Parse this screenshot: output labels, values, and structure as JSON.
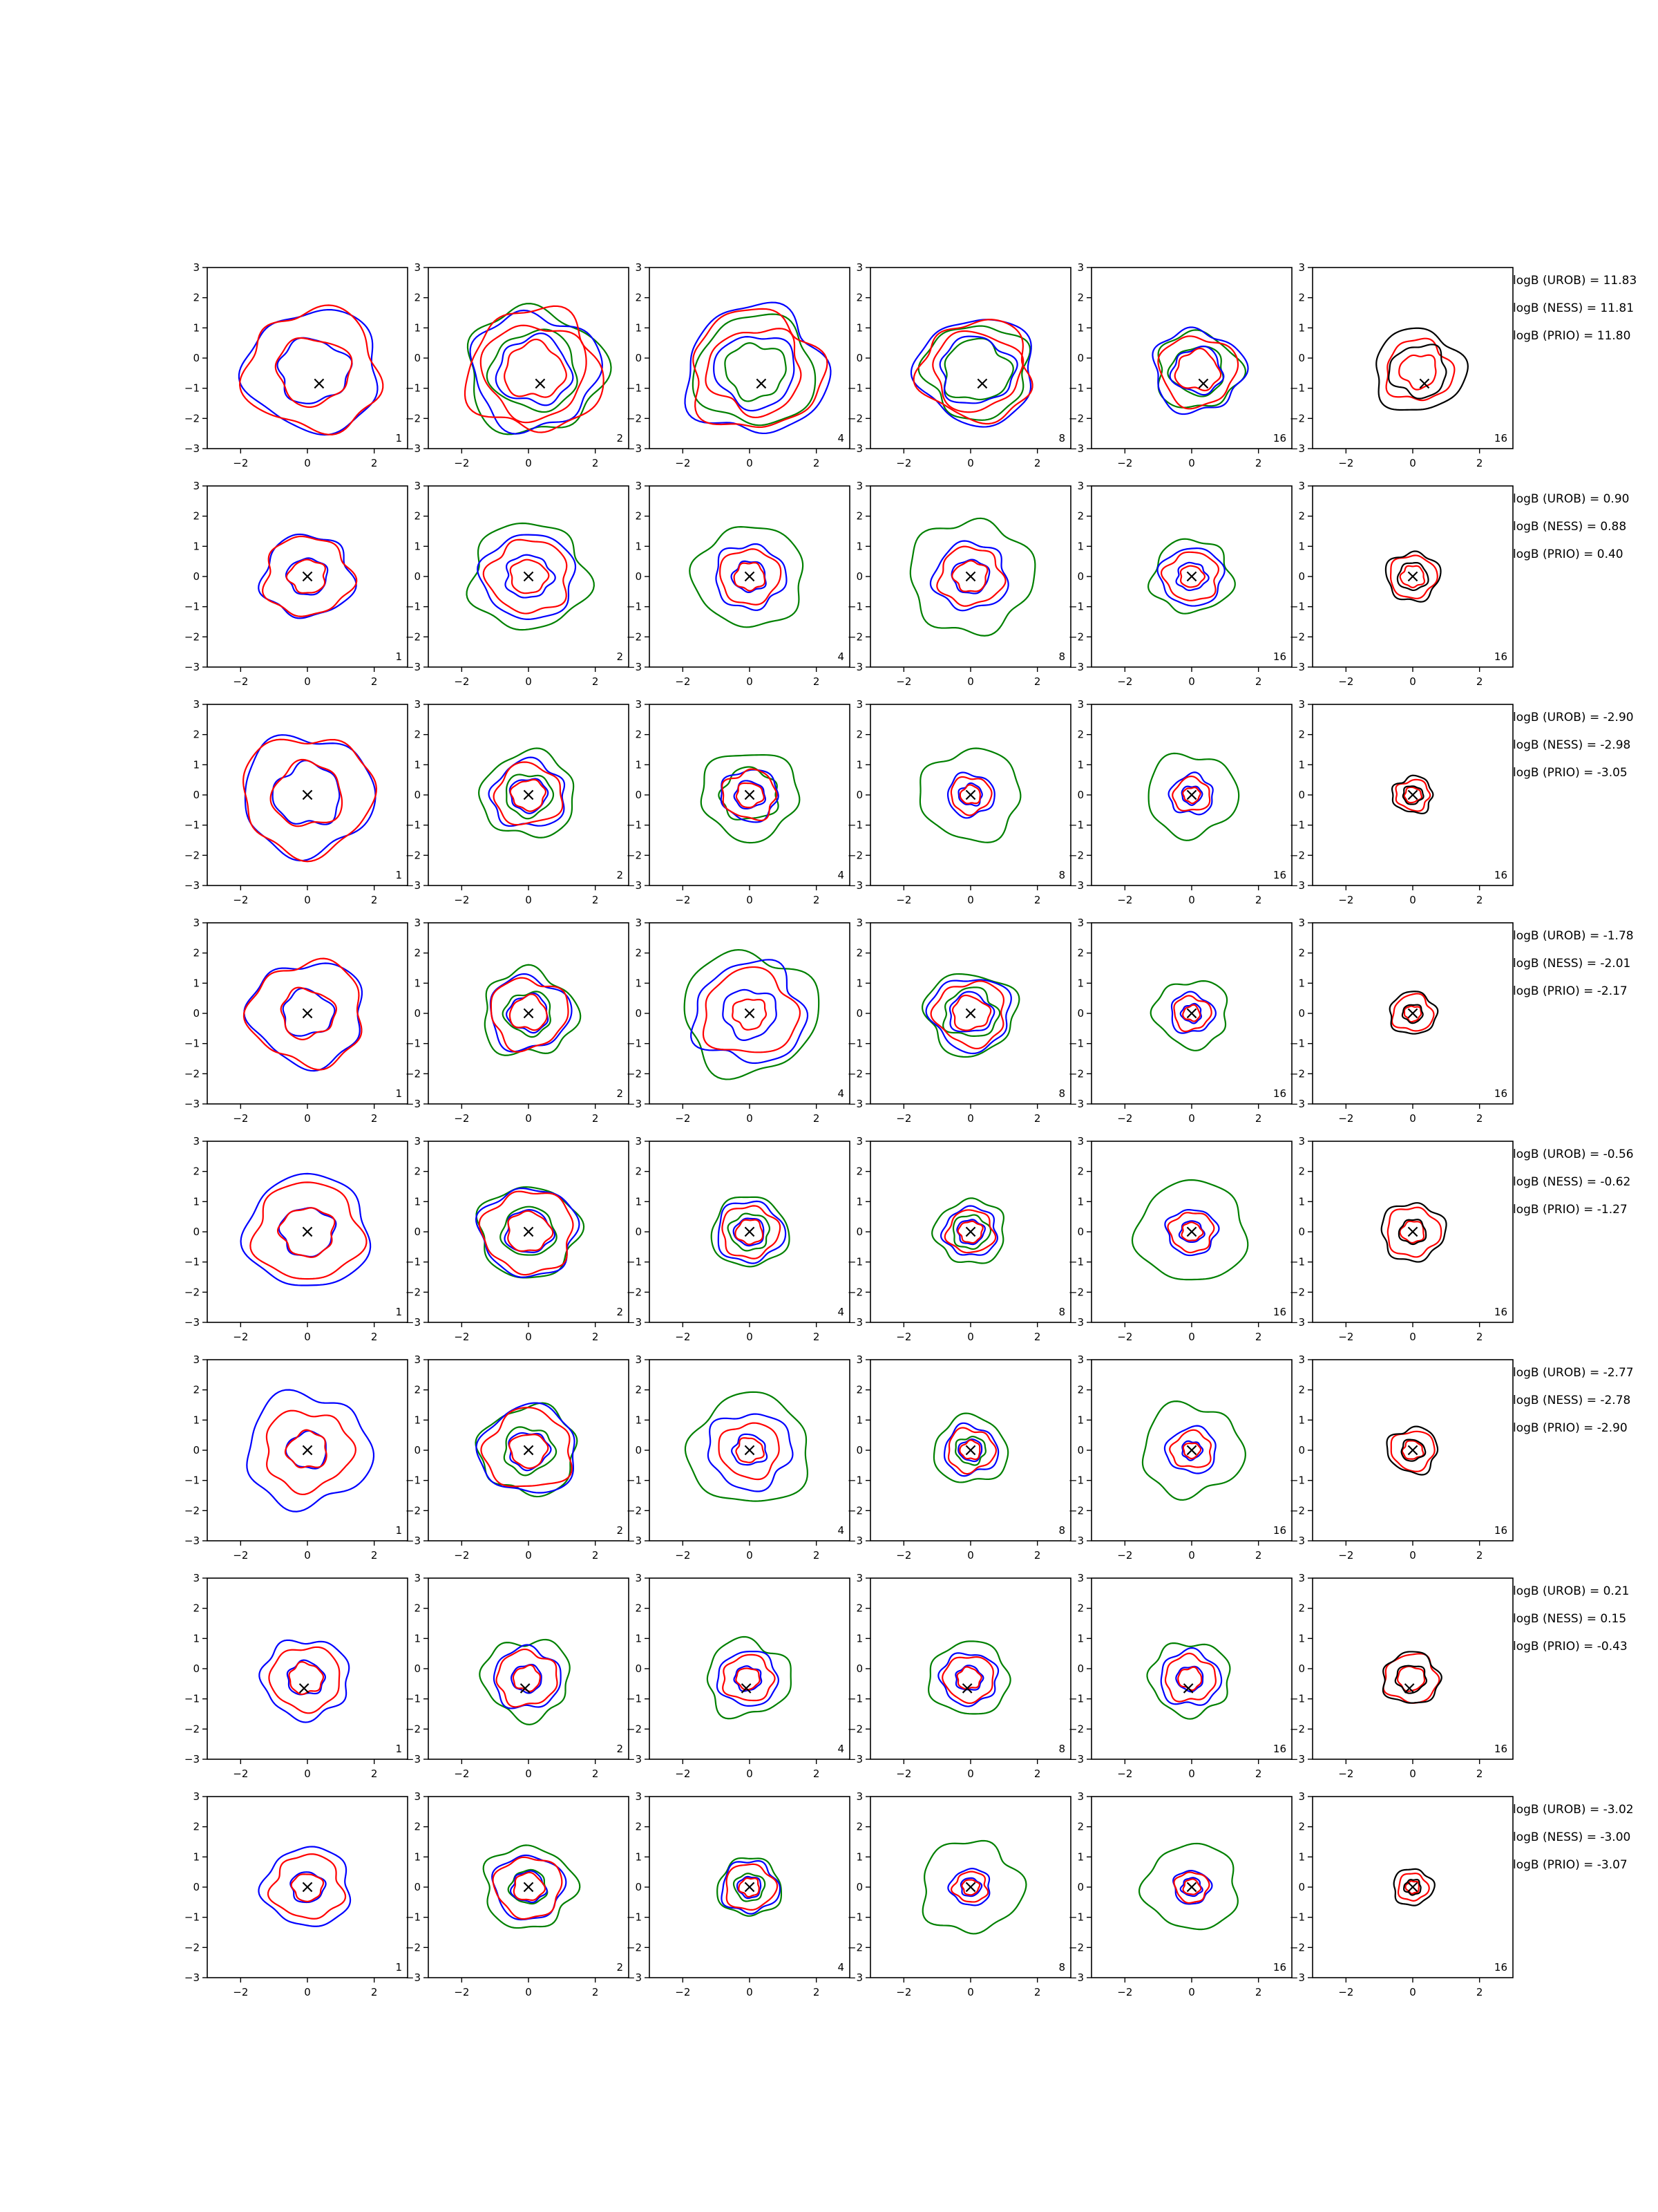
{
  "chart_data": {
    "type": "contour-grid",
    "rows": 8,
    "cols": 6,
    "xlim": [
      -3,
      3
    ],
    "ylim": [
      -3,
      3
    ],
    "xticks": [
      -2,
      0,
      2
    ],
    "yticks": [
      3,
      2,
      1,
      0,
      -1,
      -2,
      -3
    ],
    "xtick_labels": [
      "−2",
      "0",
      "2"
    ],
    "ytick_labels": [
      "3",
      "2",
      "1",
      "0",
      "−1",
      "−2",
      "−3"
    ],
    "column_labels": [
      "1",
      "2",
      "4",
      "8",
      "16",
      "16"
    ],
    "series_colors": {
      "blue": "#0000ff",
      "red": "#ff0000",
      "green": "#008000",
      "black": "#000000"
    },
    "marker": "×",
    "row_markers": [
      {
        "x": 0.35,
        "y": -0.85
      },
      {
        "x": 0.0,
        "y": 0.0
      },
      {
        "x": 0.0,
        "y": 0.0
      },
      {
        "x": 0.0,
        "y": 0.0
      },
      {
        "x": 0.0,
        "y": 0.0
      },
      {
        "x": 0.0,
        "y": 0.0
      },
      {
        "x": -0.1,
        "y": -0.65
      },
      {
        "x": 0.0,
        "y": 0.0
      }
    ],
    "contour_radii": [
      [
        {
          "black": [],
          "blue": [
            1.05,
            2.0
          ],
          "red": [
            1.1,
            2.0
          ],
          "green": []
        },
        {
          "black": [],
          "blue": [
            1.1,
            1.9
          ],
          "red": [
            0.9,
            1.55,
            2.0
          ],
          "green": [
            1.3,
            2.05
          ]
        },
        {
          "black": [],
          "blue": [
            1.2,
            2.1
          ],
          "red": [
            1.4,
            1.95
          ],
          "green": [
            0.9,
            1.8
          ]
        },
        {
          "black": [],
          "blue": [
            1.1,
            1.75
          ],
          "red": [
            1.3,
            1.65
          ],
          "green": [
            1.0,
            1.55
          ]
        },
        {
          "black": [],
          "blue": [
            0.75,
            1.35
          ],
          "red": [
            0.65,
            1.15
          ],
          "green": [
            0.8,
            1.25
          ]
        },
        {
          "black": [
            0.85,
            1.35
          ],
          "blue": [],
          "red": [
            0.55,
            1.0
          ],
          "green": []
        }
      ],
      [
        {
          "black": [],
          "blue": [
            0.6,
            1.35
          ],
          "red": [
            0.55,
            1.3
          ],
          "green": []
        },
        {
          "black": [],
          "blue": [
            0.7,
            1.4
          ],
          "red": [
            0.55,
            1.2
          ],
          "green": [
            1.75
          ]
        },
        {
          "black": [],
          "blue": [
            0.5,
            1.05
          ],
          "red": [
            0.45,
            0.9
          ],
          "green": [
            1.65
          ]
        },
        {
          "black": [],
          "blue": [
            0.55,
            1.1
          ],
          "red": [
            0.5,
            0.95
          ],
          "green": [
            1.85
          ]
        },
        {
          "black": [],
          "blue": [
            0.45,
            0.95
          ],
          "red": [
            0.35,
            0.8
          ],
          "green": [
            1.2
          ]
        },
        {
          "black": [
            0.45,
            0.8
          ],
          "blue": [],
          "red": [
            0.35,
            0.7
          ],
          "green": []
        }
      ],
      [
        {
          "black": [],
          "blue": [
            1.0,
            1.95
          ],
          "red": [
            1.05,
            1.95
          ],
          "green": []
        },
        {
          "black": [],
          "blue": [
            0.55,
            1.1
          ],
          "red": [
            0.5,
            1.0
          ],
          "green": [
            0.7,
            1.4
          ]
        },
        {
          "black": [],
          "blue": [
            0.45,
            0.85
          ],
          "red": [
            0.4,
            0.8
          ],
          "green": [
            0.85,
            1.45
          ]
        },
        {
          "black": [],
          "blue": [
            0.35,
            0.7
          ],
          "red": [
            0.3,
            0.6
          ],
          "green": [
            1.5
          ]
        },
        {
          "black": [],
          "blue": [
            0.3,
            0.65
          ],
          "red": [
            0.25,
            0.55
          ],
          "green": [
            1.35
          ]
        },
        {
          "black": [
            0.3,
            0.6
          ],
          "blue": [],
          "red": [
            0.25,
            0.5
          ],
          "green": []
        }
      ],
      [
        {
          "black": [],
          "blue": [
            0.75,
            1.7
          ],
          "red": [
            0.8,
            1.7
          ],
          "green": []
        },
        {
          "black": [],
          "blue": [
            0.6,
            1.2
          ],
          "red": [
            0.55,
            1.15
          ],
          "green": [
            0.7,
            1.4
          ]
        },
        {
          "black": [],
          "blue": [
            0.8,
            1.65
          ],
          "red": [
            0.5,
            1.4
          ],
          "green": [
            2.0
          ]
        },
        {
          "black": [],
          "blue": [
            0.65,
            1.2
          ],
          "red": [
            0.55,
            1.05
          ],
          "green": [
            0.8,
            1.35
          ]
        },
        {
          "black": [],
          "blue": [
            0.3,
            0.65
          ],
          "red": [
            0.25,
            0.55
          ],
          "green": [
            1.1
          ]
        },
        {
          "black": [
            0.3,
            0.7
          ],
          "blue": [],
          "red": [
            0.25,
            0.6
          ],
          "green": []
        }
      ],
      [
        {
          "black": [],
          "blue": [
            0.8,
            1.85
          ],
          "red": [
            0.8,
            1.6
          ],
          "green": []
        },
        {
          "black": [],
          "blue": [
            0.7,
            1.45
          ],
          "red": [
            0.65,
            1.35
          ],
          "green": [
            0.8,
            1.5
          ]
        },
        {
          "black": [],
          "blue": [
            0.45,
            1.0
          ],
          "red": [
            0.4,
            0.85
          ],
          "green": [
            0.6,
            1.15
          ]
        },
        {
          "black": [],
          "blue": [
            0.4,
            0.8
          ],
          "red": [
            0.35,
            0.7
          ],
          "green": [
            0.55,
            1.05
          ]
        },
        {
          "black": [],
          "blue": [
            0.35,
            0.75
          ],
          "red": [
            0.3,
            0.65
          ],
          "green": [
            1.65
          ]
        },
        {
          "black": [
            0.4,
            0.95
          ],
          "blue": [],
          "red": [
            0.35,
            0.8
          ],
          "green": []
        }
      ],
      [
        {
          "black": [],
          "blue": [
            0.6,
            1.85
          ],
          "red": [
            0.6,
            1.3
          ],
          "green": []
        },
        {
          "black": [],
          "blue": [
            0.6,
            1.45
          ],
          "red": [
            0.55,
            1.3
          ],
          "green": [
            0.75,
            1.45
          ]
        },
        {
          "black": [],
          "blue": [
            0.5,
            1.25
          ],
          "red": [
            0.4,
            0.9
          ],
          "green": [
            1.8
          ]
        },
        {
          "black": [],
          "blue": [
            0.35,
            0.8
          ],
          "red": [
            0.3,
            0.7
          ],
          "green": [
            0.45,
            1.1
          ]
        },
        {
          "black": [],
          "blue": [
            0.3,
            0.75
          ],
          "red": [
            0.25,
            0.6
          ],
          "green": [
            1.5
          ]
        },
        {
          "black": [
            0.35,
            0.75
          ],
          "blue": [],
          "red": [
            0.3,
            0.65
          ],
          "green": []
        }
      ],
      [
        {
          "black": [],
          "blue": [
            0.55,
            1.3
          ],
          "red": [
            0.5,
            1.05
          ],
          "green": []
        },
        {
          "black": [],
          "blue": [
            0.45,
            1.0
          ],
          "red": [
            0.4,
            0.9
          ],
          "green": [
            1.3
          ]
        },
        {
          "black": [],
          "blue": [
            0.4,
            0.9
          ],
          "red": [
            0.35,
            0.75
          ],
          "green": [
            1.25
          ]
        },
        {
          "black": [],
          "blue": [
            0.4,
            0.85
          ],
          "red": [
            0.35,
            0.75
          ],
          "green": [
            1.2
          ]
        },
        {
          "black": [],
          "blue": [
            0.4,
            0.9
          ],
          "red": [
            0.35,
            0.75
          ],
          "green": [
            1.2
          ]
        },
        {
          "black": [
            0.45,
            0.85
          ],
          "blue": [],
          "red": [
            0.4,
            0.8
          ],
          "green": []
        }
      ],
      [
        {
          "black": [],
          "blue": [
            0.5,
            1.3
          ],
          "red": [
            0.45,
            1.05
          ],
          "green": []
        },
        {
          "black": [],
          "blue": [
            0.5,
            1.05
          ],
          "red": [
            0.45,
            1.0
          ],
          "green": [
            0.55,
            1.35
          ]
        },
        {
          "black": [],
          "blue": [
            0.35,
            0.85
          ],
          "red": [
            0.3,
            0.75
          ],
          "green": [
            0.45,
            0.95
          ]
        },
        {
          "black": [],
          "blue": [
            0.3,
            0.6
          ],
          "red": [
            0.25,
            0.5
          ],
          "green": [
            1.5
          ]
        },
        {
          "black": [],
          "blue": [
            0.3,
            0.55
          ],
          "red": [
            0.25,
            0.5
          ],
          "green": [
            1.4
          ]
        },
        {
          "black": [
            0.25,
            0.6
          ],
          "blue": [],
          "red": [
            0.2,
            0.45
          ],
          "green": []
        }
      ]
    ],
    "annotations": [
      [
        "logB (UROB) = 11.83",
        "logB (NESS) = 11.81",
        "logB (PRIO) = 11.80"
      ],
      [
        "logB (UROB) = 0.90",
        "logB (NESS) = 0.88",
        "logB (PRIO) = 0.40"
      ],
      [
        "logB (UROB) = -2.90",
        "logB (NESS) = -2.98",
        "logB (PRIO) = -3.05"
      ],
      [
        "logB (UROB) = -1.78",
        "logB (NESS) = -2.01",
        "logB (PRIO) = -2.17"
      ],
      [
        "logB (UROB) = -0.56",
        "logB (NESS) = -0.62",
        "logB (PRIO) = -1.27"
      ],
      [
        "logB (UROB) = -2.77",
        "logB (NESS) = -2.78",
        "logB (PRIO) = -2.90"
      ],
      [
        "logB (UROB) = 0.21",
        "logB (NESS) = 0.15",
        "logB (PRIO) = -0.43"
      ],
      [
        "logB (UROB) = -3.02",
        "logB (NESS) = -3.00",
        "logB (PRIO) = -3.07"
      ]
    ]
  }
}
